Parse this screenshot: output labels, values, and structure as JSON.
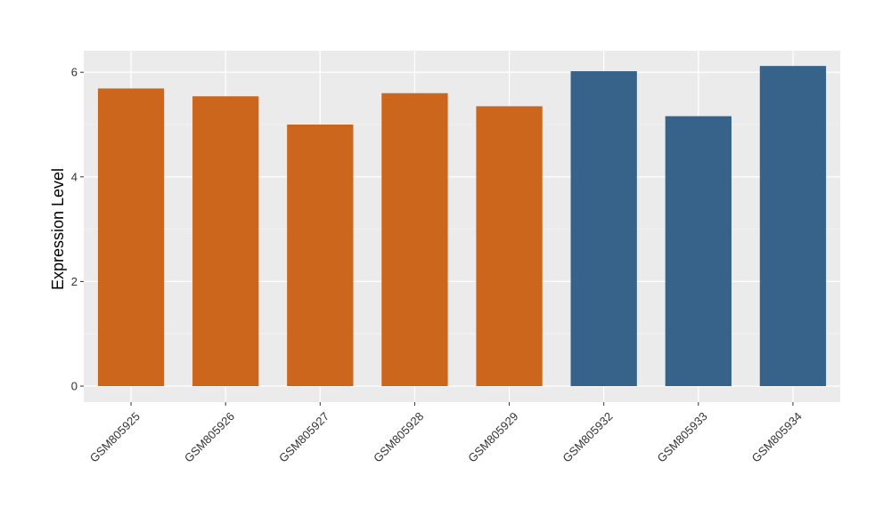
{
  "chart_data": {
    "type": "bar",
    "title": "",
    "xlabel": "",
    "ylabel": "Expression Level",
    "ylim": [
      0,
      6.4
    ],
    "yticks": [
      0,
      2,
      4,
      6
    ],
    "grid": true,
    "legend": "none",
    "categories": [
      "GSM805925",
      "GSM805926",
      "GSM805927",
      "GSM805928",
      "GSM805929",
      "GSM805932",
      "GSM805933",
      "GSM805934"
    ],
    "values": [
      5.69,
      5.54,
      5.0,
      5.6,
      5.35,
      6.02,
      5.16,
      6.12
    ],
    "group_colors": [
      "#cc661c",
      "#cc661c",
      "#cc661c",
      "#cc661c",
      "#cc661c",
      "#37638a",
      "#37638a",
      "#37638a"
    ],
    "colors": {
      "panel_background": "#ebebeb",
      "grid_major": "#ffffff",
      "grid_minor": "#f5f5f5",
      "tick_color": "#333333"
    }
  }
}
